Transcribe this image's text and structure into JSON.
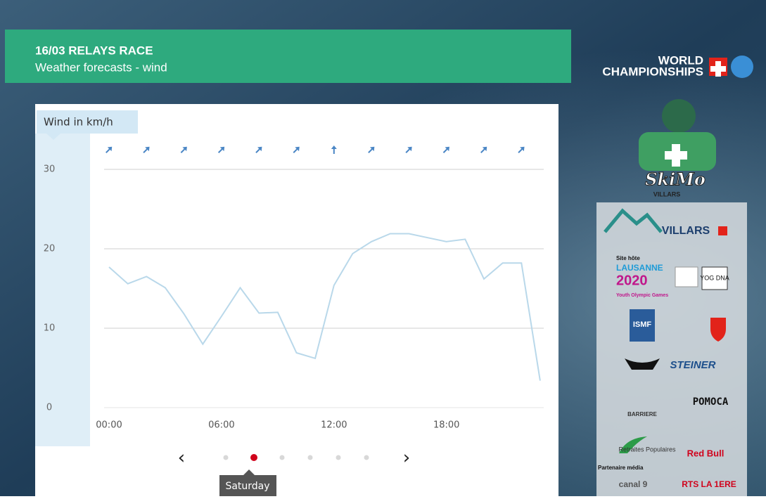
{
  "header": {
    "title": "16/03 RELAYS RACE",
    "subtitle": "Weather forecasts - wind"
  },
  "brand": {
    "line1": "WORLD",
    "line2": "CHAMPIONSHIPS"
  },
  "event_logo": {
    "name": "SkiMo",
    "place": "VILLARS"
  },
  "chart_data": {
    "type": "line",
    "y_label": "Wind in km/h",
    "categories": [
      "00:00",
      null,
      null,
      null,
      null,
      null,
      "06:00",
      null,
      null,
      null,
      null,
      null,
      "12:00",
      null,
      null,
      null,
      null,
      null,
      "18:00",
      null,
      null,
      null,
      null,
      null
    ],
    "values": [
      17.7,
      15.6,
      16.5,
      15.1,
      11.8,
      8.0,
      11.5,
      15.1,
      11.9,
      12.0,
      6.9,
      6.2,
      15.4,
      19.4,
      20.9,
      21.9,
      21.9,
      21.4,
      20.9,
      21.2,
      16.2,
      18.2,
      18.2,
      3.4
    ],
    "color": "#b9d8ea",
    "wind_directions": [
      45,
      45,
      45,
      45,
      45,
      45,
      0,
      45,
      45,
      45,
      45,
      45
    ],
    "ylim": [
      0,
      30
    ],
    "yticks": [
      0,
      10,
      20,
      30
    ],
    "grid": true
  },
  "pager": {
    "day": "Saturday",
    "pages": 6,
    "active": 1
  },
  "sponsors": {
    "host": "VILLARS",
    "host_label": "Site hôte",
    "lausanne": "LAUSANNE",
    "year": "2020",
    "yog": "Youth Olympic Games",
    "yog_dna": "YOG DNA",
    "ismf": "ISMF",
    "steiner": "STEINER",
    "barriere": "BARRIERE",
    "pomoca": "POMOCA",
    "retraites": "Retraites Populaires",
    "redbull": "Red Bull",
    "media_label": "Partenaire média",
    "canal": "canal 9",
    "rts": "RTS LA 1ERE"
  }
}
